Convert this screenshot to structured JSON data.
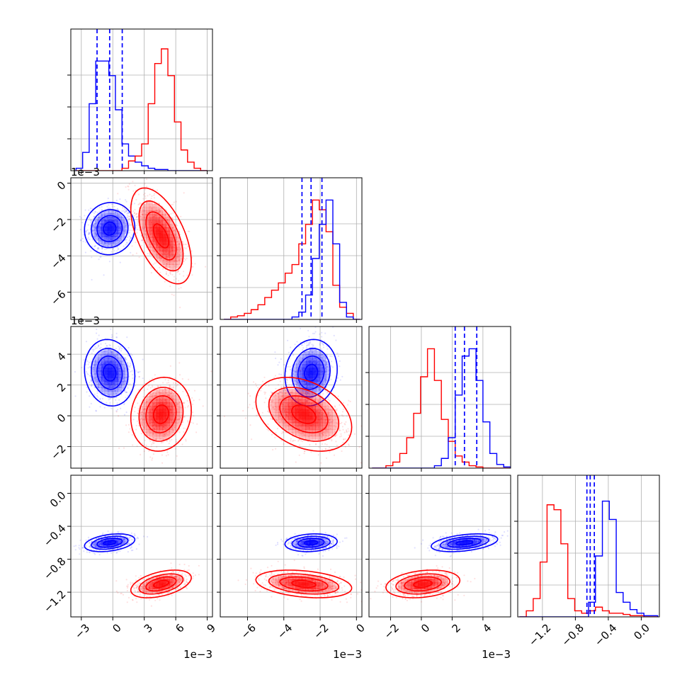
{
  "colors": {
    "series_a": "#0000ff",
    "series_b": "#ff0000",
    "grid": "#b0b0b0",
    "frame": "#000000"
  },
  "chart_data": {
    "type": "corner",
    "n_params": 4,
    "grid": true,
    "parameters": [
      {
        "index": 0,
        "range": [
          -4.0,
          9.5
        ],
        "ticks": [
          -3,
          0,
          3,
          6,
          9
        ],
        "tick_labels": [
          "−3",
          "0",
          "3",
          "6",
          "9"
        ],
        "offset_label": "1e−3"
      },
      {
        "index": 1,
        "range": [
          -7.5,
          0.3
        ],
        "ticks": [
          -6,
          -4,
          -2,
          0
        ],
        "tick_labels": [
          "−6",
          "−4",
          "−2",
          "0"
        ],
        "offset_label": "1e−3"
      },
      {
        "index": 2,
        "range": [
          -3.4,
          5.8
        ],
        "ticks": [
          -2,
          0,
          2,
          4
        ],
        "tick_labels": [
          "−2",
          "0",
          "2",
          "4"
        ],
        "offset_label": "1e−3"
      },
      {
        "index": 3,
        "range": [
          -1.5,
          0.22
        ],
        "ticks": [
          -1.2,
          -0.8,
          -0.4,
          0.0
        ],
        "tick_labels": [
          "−1.2",
          "−0.8",
          "−0.4",
          "0.0"
        ],
        "offset_label": ""
      }
    ],
    "series": [
      {
        "name": "",
        "color_key": "series_a",
        "means": [
          -0.3,
          -2.5,
          2.8,
          -0.6
        ],
        "sds": [
          1.0,
          0.6,
          0.9,
          0.045
        ],
        "quantiles": [
          [
            -1.5,
            -0.3,
            0.9
          ],
          [
            -3.0,
            -2.5,
            -1.9
          ],
          [
            2.2,
            2.8,
            3.6
          ],
          [
            -0.66,
            -0.62,
            -0.57
          ]
        ],
        "correlations": [
          [
            0,
            1,
            0.05
          ],
          [
            0,
            2,
            -0.1
          ],
          [
            0,
            3,
            0.35
          ],
          [
            1,
            2,
            0.1
          ],
          [
            1,
            3,
            0.15
          ],
          [
            2,
            3,
            0.4
          ]
        ],
        "histograms": [
          {
            "edges": [
              -3.5,
              9.0
            ],
            "counts": [
              0.02,
              0.15,
              0.55,
              0.9,
              0.9,
              0.78,
              0.5,
              0.22,
              0.12,
              0.07,
              0.04,
              0.02,
              0.01,
              0.01,
              0.0,
              0.0,
              0.0,
              0.0,
              0.0,
              0.0
            ]
          },
          {
            "edges": [
              -7.3,
              0.2
            ],
            "counts": [
              0.0,
              0.0,
              0.0,
              0.0,
              0.0,
              0.0,
              0.0,
              0.0,
              0.0,
              0.0,
              0.02,
              0.06,
              0.2,
              0.5,
              0.78,
              0.98,
              0.62,
              0.14,
              0.02,
              0.0
            ]
          },
          {
            "edges": [
              -3.2,
              5.8
            ],
            "counts": [
              0.0,
              0.0,
              0.0,
              0.0,
              0.0,
              0.0,
              0.0,
              0.0,
              0.0,
              0.02,
              0.08,
              0.25,
              0.6,
              0.92,
              0.98,
              0.72,
              0.38,
              0.12,
              0.03,
              0.01
            ]
          },
          {
            "edges": [
              -1.48,
              0.2
            ],
            "counts": [
              0.0,
              0.0,
              0.0,
              0.0,
              0.0,
              0.0,
              0.0,
              0.0,
              0.0,
              0.0,
              0.12,
              0.5,
              0.95,
              0.8,
              0.2,
              0.12,
              0.06,
              0.03,
              0.01,
              0.01
            ]
          }
        ]
      },
      {
        "name": "",
        "color_key": "series_b",
        "means": [
          4.6,
          -2.9,
          0.1,
          -1.1
        ],
        "sds": [
          1.2,
          1.1,
          1.0,
          0.07
        ],
        "quantiles": [],
        "correlations": [
          [
            0,
            1,
            -0.55
          ],
          [
            0,
            2,
            0.1
          ],
          [
            0,
            3,
            0.45
          ],
          [
            1,
            2,
            -0.35
          ],
          [
            1,
            3,
            -0.3
          ],
          [
            2,
            3,
            0.25
          ]
        ],
        "histograms": [
          {
            "edges": [
              -3.5,
              9.0
            ],
            "counts": [
              0.0,
              0.0,
              0.0,
              0.0,
              0.0,
              0.0,
              0.0,
              0.02,
              0.08,
              0.12,
              0.22,
              0.55,
              0.88,
              1.0,
              0.78,
              0.4,
              0.17,
              0.07,
              0.02,
              0.0
            ]
          },
          {
            "edges": [
              -7.3,
              0.2
            ],
            "counts": [
              0.0,
              0.02,
              0.03,
              0.05,
              0.08,
              0.12,
              0.18,
              0.24,
              0.3,
              0.38,
              0.45,
              0.62,
              0.78,
              0.98,
              0.9,
              0.72,
              0.28,
              0.1,
              0.05,
              0.0
            ]
          },
          {
            "edges": [
              -3.2,
              5.8
            ],
            "counts": [
              0.0,
              0.0,
              0.02,
              0.05,
              0.12,
              0.25,
              0.45,
              0.75,
              0.98,
              0.72,
              0.4,
              0.22,
              0.1,
              0.05,
              0.02,
              0.01,
              0.0,
              0.0,
              0.0,
              0.0
            ]
          },
          {
            "edges": [
              -1.48,
              0.2
            ],
            "counts": [
              0.0,
              0.05,
              0.15,
              0.45,
              0.92,
              0.88,
              0.6,
              0.15,
              0.05,
              0.03,
              0.05,
              0.08,
              0.05,
              0.03,
              0.03,
              0.02,
              0.01,
              0.01,
              0.0,
              0.0
            ]
          }
        ]
      }
    ]
  }
}
